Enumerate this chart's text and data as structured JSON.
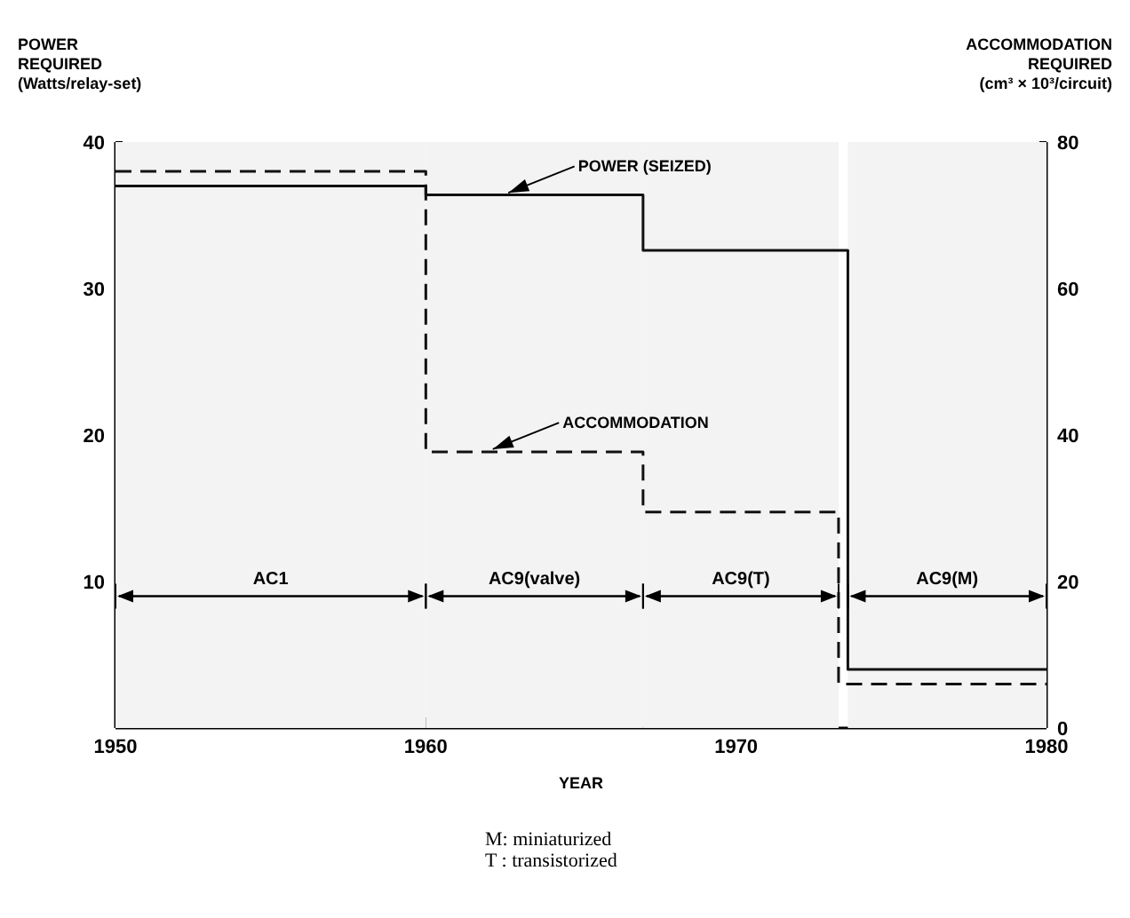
{
  "chart_data": {
    "type": "step",
    "xlabel": "YEAR",
    "ylabel": "POWER\nREQUIRED\n(Watts/relay-set)",
    "y2label": "ACCOMMODATION\nREQUIRED\n(cm³ × 10³/circuit)",
    "xlim": [
      1950,
      1980
    ],
    "xticks": [
      1950,
      1960,
      1970,
      1980
    ],
    "ylim": [
      0,
      40
    ],
    "yticks": [
      10,
      20,
      30,
      40
    ],
    "y2lim": [
      0,
      80
    ],
    "y2ticks": [
      0,
      20,
      40,
      60,
      80
    ],
    "series": [
      {
        "color": "#111111",
        "line_style": "solid",
        "x": [
          1950,
          1960,
          1967,
          1973.6,
          1980
        ],
        "values": [
          37,
          36.4,
          32.6,
          4,
          4
        ]
      },
      {
        "color": "#111111",
        "line_style": "dashed",
        "axis": "y2",
        "x": [
          1950,
          1960,
          1967,
          1973.3,
          1980
        ],
        "values": [
          76,
          37.7,
          29.5,
          6,
          6
        ]
      }
    ],
    "bands": [
      {
        "axis": "x",
        "from": 1950,
        "to": 1960,
        "label": "AC1"
      },
      {
        "axis": "x",
        "from": 1960,
        "to": 1967,
        "label": "AC9(valve)"
      },
      {
        "axis": "x",
        "from": 1967,
        "to": 1973.3,
        "label": "AC9(T)"
      },
      {
        "axis": "x",
        "from": 1973.6,
        "to": 1980,
        "label": "AC9(M)"
      }
    ],
    "annotations": [
      {
        "text": "POWER (SEIZED)",
        "x": 1962.5,
        "y": 36.4
      },
      {
        "text": "ACCOMMODATION",
        "x": 1962,
        "y": 18.9
      },
      "M: miniaturized",
      "T : transistorized"
    ],
    "grid": false,
    "marker": "none"
  }
}
